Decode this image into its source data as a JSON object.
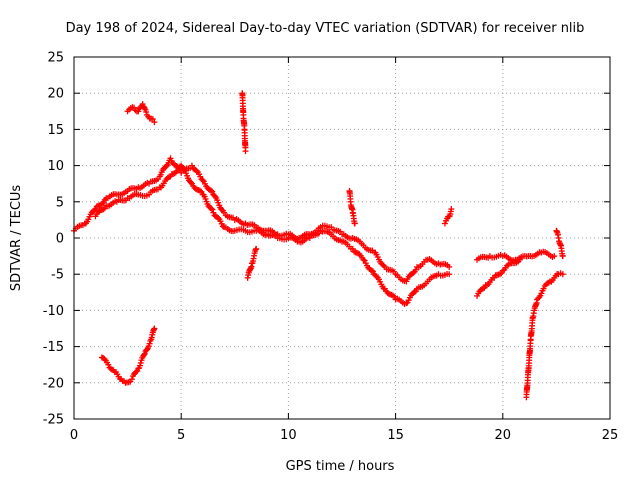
{
  "chart_data": {
    "type": "scatter",
    "title": "Day 198 of 2024, Sidereal Day-to-day VTEC variation (SDTVAR) for receiver nlib",
    "xlabel": "GPS time / hours",
    "ylabel": "SDTVAR / TECUs",
    "xlim": [
      0,
      25
    ],
    "ylim": [
      -25,
      25
    ],
    "xticks": [
      "0",
      "5",
      "10",
      "15",
      "20",
      "25"
    ],
    "yticks": [
      "25",
      "20",
      "15",
      "10",
      "5",
      "0",
      "-5",
      "-10",
      "-15",
      "-20",
      "-25"
    ],
    "grid": true,
    "marker": "+",
    "color": "#ff0000",
    "series": [
      {
        "name": "main-trace-a",
        "x": [
          0,
          0.5,
          1,
          1.5,
          2,
          2.5,
          3,
          3.5,
          4,
          4.5,
          5,
          5.5,
          6,
          6.5,
          7,
          7.5,
          8,
          8.5,
          9,
          9.5,
          10,
          10.5,
          11,
          11.5,
          12,
          12.5,
          13,
          13.5,
          14,
          14.5,
          15,
          15.5,
          16,
          16.5,
          17,
          17.5
        ],
        "y": [
          1,
          2,
          4,
          5.5,
          6,
          6.5,
          7,
          7.5,
          8.5,
          11,
          9,
          10,
          8,
          6,
          3.5,
          2.5,
          2,
          1.5,
          1,
          0.5,
          0.5,
          0,
          0.5,
          1.5,
          1.5,
          0.5,
          0,
          -1,
          -2,
          -4,
          -5,
          -6,
          -4,
          -3,
          -3.5,
          -4
        ]
      },
      {
        "name": "main-trace-b",
        "x": [
          1,
          1.5,
          2,
          2.5,
          3,
          3.5,
          4,
          4.5,
          5,
          5.5,
          6,
          6.5,
          7,
          7.5,
          8,
          8.5,
          9,
          9.5,
          10,
          10.5,
          11,
          11.5,
          12,
          12.5,
          13,
          13.5,
          14,
          14.5,
          15,
          15.5,
          16,
          16.5,
          17,
          17.5
        ],
        "y": [
          3,
          4.5,
          5,
          5.5,
          6,
          6,
          7,
          8.5,
          10,
          7.5,
          6,
          3.5,
          1.5,
          1,
          1,
          1,
          0.5,
          0,
          0,
          -0.5,
          0,
          1,
          0.5,
          -0.5,
          -1.5,
          -3,
          -5,
          -7,
          -8.5,
          -9,
          -7,
          -6,
          -5,
          -5
        ]
      },
      {
        "name": "segment-0-1",
        "x": [
          1.3,
          1.6,
          1.9,
          2.2,
          2.4,
          2.7,
          3.0,
          3.3,
          3.6,
          3.75
        ],
        "y": [
          -16.5,
          -17.5,
          -18.5,
          -19.5,
          -20,
          -19.5,
          -18,
          -16,
          -14,
          -12.5
        ]
      },
      {
        "name": "segment-0-2",
        "x": [
          2.5,
          2.8,
          3.0,
          3.2,
          3.4,
          3.6,
          3.75
        ],
        "y": [
          17.5,
          18,
          17.5,
          18.5,
          17,
          16.5,
          16
        ]
      },
      {
        "name": "segment-0-3",
        "x": [
          7.85,
          7.9,
          7.95,
          8.0
        ],
        "y": [
          20,
          17,
          15,
          12
        ]
      },
      {
        "name": "segment-0-4",
        "x": [
          8.1,
          8.3,
          8.5
        ],
        "y": [
          -5.5,
          -3.5,
          -1.5
        ]
      },
      {
        "name": "segment-0-5",
        "x": [
          12.85,
          12.9,
          13.0,
          13.1
        ],
        "y": [
          6.5,
          5,
          3.5,
          2
        ]
      },
      {
        "name": "segment-0-6",
        "x": [
          17.3,
          17.5,
          17.6
        ],
        "y": [
          2,
          3,
          4
        ]
      },
      {
        "name": "segment-0-7",
        "x": [
          18.8,
          19.2,
          19.6,
          20.0,
          20.4,
          20.8
        ],
        "y": [
          -8,
          -6.5,
          -5.5,
          -4.5,
          -3.5,
          -3
        ]
      },
      {
        "name": "segment-0-8",
        "x": [
          18.8,
          19.4,
          20.0,
          20.6,
          21.2,
          21.8,
          22.4
        ],
        "y": [
          -3,
          -2.5,
          -2.5,
          -3,
          -2.5,
          -2,
          -2.5
        ]
      },
      {
        "name": "segment-0-9",
        "x": [
          21.1,
          21.2,
          21.3,
          21.4,
          21.6,
          21.9,
          22.2,
          22.6,
          22.8
        ],
        "y": [
          -22,
          -18,
          -14,
          -11,
          -8.5,
          -7,
          -6,
          -5,
          -5
        ]
      },
      {
        "name": "segment-0-10",
        "x": [
          22.5,
          22.6,
          22.7,
          22.8
        ],
        "y": [
          1,
          0,
          -1,
          -2.5
        ]
      }
    ]
  }
}
